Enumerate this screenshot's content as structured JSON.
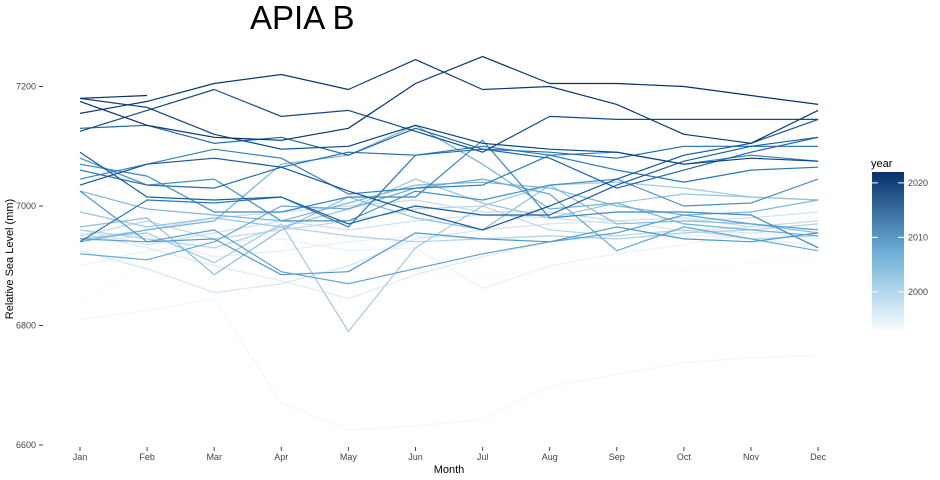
{
  "chart_data": {
    "type": "line",
    "title": "APIA B",
    "xlabel": "Month",
    "ylabel": "Relative Sea Level (mm)",
    "categories": [
      "Jan",
      "Feb",
      "Mar",
      "Apr",
      "May",
      "Jun",
      "Jul",
      "Aug",
      "Sep",
      "Oct",
      "Nov",
      "Dec"
    ],
    "y_ticks": [
      "6600",
      "6800",
      "7000",
      "7200"
    ],
    "ylim": [
      6600,
      7250
    ],
    "grid": false,
    "legend": {
      "title": "year",
      "position": "right",
      "type": "colorbar",
      "range": [
        1993,
        2022
      ],
      "ticks": [
        "2000",
        "2010",
        "2020"
      ],
      "color_low": "#f7fbff",
      "color_high": "#08306b"
    },
    "series": [
      {
        "year": 1993,
        "values": [
          6835,
          6905,
          6930,
          6920,
          6950,
          6890,
          6880,
          6895,
          6900,
          6890,
          6905,
          6910
        ]
      },
      {
        "year": 1994,
        "values": [
          6810,
          6825,
          6845,
          6670,
          6625,
          6632,
          6642,
          6698,
          6718,
          6738,
          6746,
          6750
        ]
      },
      {
        "year": 1995,
        "values": [
          6900,
          6925,
          6940,
          6945,
          6925,
          6930,
          6862,
          6900,
          6920,
          6935,
          6955,
          6945
        ]
      },
      {
        "year": 1996,
        "values": [
          6940,
          6950,
          6915,
          6925,
          6940,
          6950,
          6945,
          6950,
          6945,
          6952,
          6945,
          6935
        ]
      },
      {
        "year": 1997,
        "values": [
          6955,
          6930,
          6900,
          6875,
          6845,
          6885,
          6915,
          6940,
          6950,
          6960,
          6955,
          6962
        ]
      },
      {
        "year": 1998,
        "values": [
          6925,
          6895,
          6855,
          6870,
          6900,
          6945,
          6960,
          6970,
          6975,
          6958,
          6965,
          6975
        ]
      },
      {
        "year": 1999,
        "values": [
          6960,
          6935,
          6955,
          6975,
          6960,
          6975,
          6985,
          6980,
          6970,
          6975,
          6980,
          6990
        ]
      },
      {
        "year": 2000,
        "values": [
          6945,
          6960,
          6980,
          6990,
          7000,
          7010,
          6990,
          6990,
          6975,
          6980,
          6965,
          6975
        ]
      },
      {
        "year": 2001,
        "values": [
          6950,
          6975,
          6945,
          6960,
          6975,
          6995,
          7000,
          6960,
          6950,
          6960,
          6945,
          6950
        ]
      },
      {
        "year": 2002,
        "values": [
          6960,
          6945,
          6930,
          6965,
          6950,
          6940,
          6945,
          6950,
          6945,
          6955,
          6960,
          6970
        ]
      },
      {
        "year": 2003,
        "values": [
          6945,
          6955,
          6905,
          6970,
          6790,
          6930,
          7000,
          7035,
          7040,
          7030,
          7015,
          7010
        ]
      },
      {
        "year": 2004,
        "values": [
          6990,
          6965,
          6980,
          6965,
          6995,
          7045,
          7005,
          6980,
          7005,
          7020,
          7015,
          7010
        ]
      },
      {
        "year": 2005,
        "values": [
          6965,
          6980,
          6885,
          6960,
          7015,
          6980,
          6960,
          7035,
          6970,
          6975,
          6970,
          6955
        ]
      },
      {
        "year": 2006,
        "values": [
          7025,
          6995,
          6985,
          6975,
          7005,
          7035,
          7040,
          7030,
          7000,
          6985,
          6990,
          7010
        ]
      },
      {
        "year": 2007,
        "values": [
          6940,
          6960,
          6975,
          7070,
          7085,
          7135,
          7070,
          6995,
          7005,
          6970,
          6960,
          6950
        ]
      },
      {
        "year": 2008,
        "values": [
          6920,
          6910,
          6940,
          7000,
          6995,
          7030,
          7045,
          7020,
          6925,
          6965,
          6945,
          6925
        ]
      },
      {
        "year": 2009,
        "values": [
          6945,
          6940,
          6960,
          6890,
          6870,
          6895,
          6920,
          6940,
          6955,
          6985,
          6970,
          6960
        ]
      },
      {
        "year": 2010,
        "values": [
          7025,
          6940,
          6945,
          6885,
          6890,
          6955,
          6945,
          6940,
          6965,
          6945,
          6940,
          6955
        ]
      },
      {
        "year": 2011,
        "values": [
          7080,
          7035,
          7045,
          6975,
          6975,
          7025,
          7010,
          7035,
          7045,
          7000,
          7005,
          7045
        ]
      },
      {
        "year": 2012,
        "values": [
          7070,
          7050,
          6990,
          6990,
          7015,
          7015,
          7110,
          6980,
          6990,
          6990,
          6985,
          6930
        ]
      },
      {
        "year": 2013,
        "values": [
          7045,
          7070,
          7095,
          7080,
          7020,
          7030,
          7035,
          7085,
          7090,
          7070,
          7085,
          7075
        ]
      },
      {
        "year": 2014,
        "values": [
          6940,
          7010,
          7005,
          7015,
          6965,
          7085,
          7100,
          7085,
          7060,
          7040,
          7060,
          7065
        ]
      },
      {
        "year": 2015,
        "values": [
          7060,
          7035,
          7030,
          7065,
          7090,
          7085,
          7095,
          7090,
          7080,
          7100,
          7100,
          7100
        ]
      },
      {
        "year": 2016,
        "values": [
          7130,
          7135,
          7105,
          7115,
          7085,
          7130,
          7095,
          7080,
          7030,
          7060,
          7090,
          7115
        ]
      },
      {
        "year": 2017,
        "values": [
          7090,
          7015,
          7010,
          7015,
          6970,
          7000,
          6985,
          6985,
          7035,
          7075,
          7100,
          7115
        ]
      },
      {
        "year": 2018,
        "values": [
          7035,
          7070,
          7080,
          7065,
          7025,
          6990,
          6960,
          7000,
          7045,
          7085,
          7105,
          7145
        ]
      },
      {
        "year": 2019,
        "values": [
          7125,
          7160,
          7195,
          7150,
          7160,
          7125,
          7090,
          7150,
          7145,
          7145,
          7145,
          7145
        ]
      },
      {
        "year": 2020,
        "values": [
          7180,
          7165,
          7120,
          7095,
          7100,
          7135,
          7105,
          7095,
          7090,
          7070,
          7080,
          7075
        ]
      },
      {
        "year": 2021,
        "values": [
          7155,
          7175,
          7205,
          7220,
          7195,
          7245,
          7195,
          7200,
          7170,
          7120,
          7105,
          7160
        ]
      },
      {
        "year": 2022,
        "values": [
          7175,
          7135,
          7115,
          7110,
          7130,
          7205,
          7250,
          7205,
          7205,
          7200,
          7185,
          7170
        ]
      },
      {
        "year": 2023,
        "values": [
          7180,
          7185,
          null,
          null,
          null,
          null,
          null,
          null,
          null,
          null,
          null,
          null
        ]
      }
    ]
  }
}
